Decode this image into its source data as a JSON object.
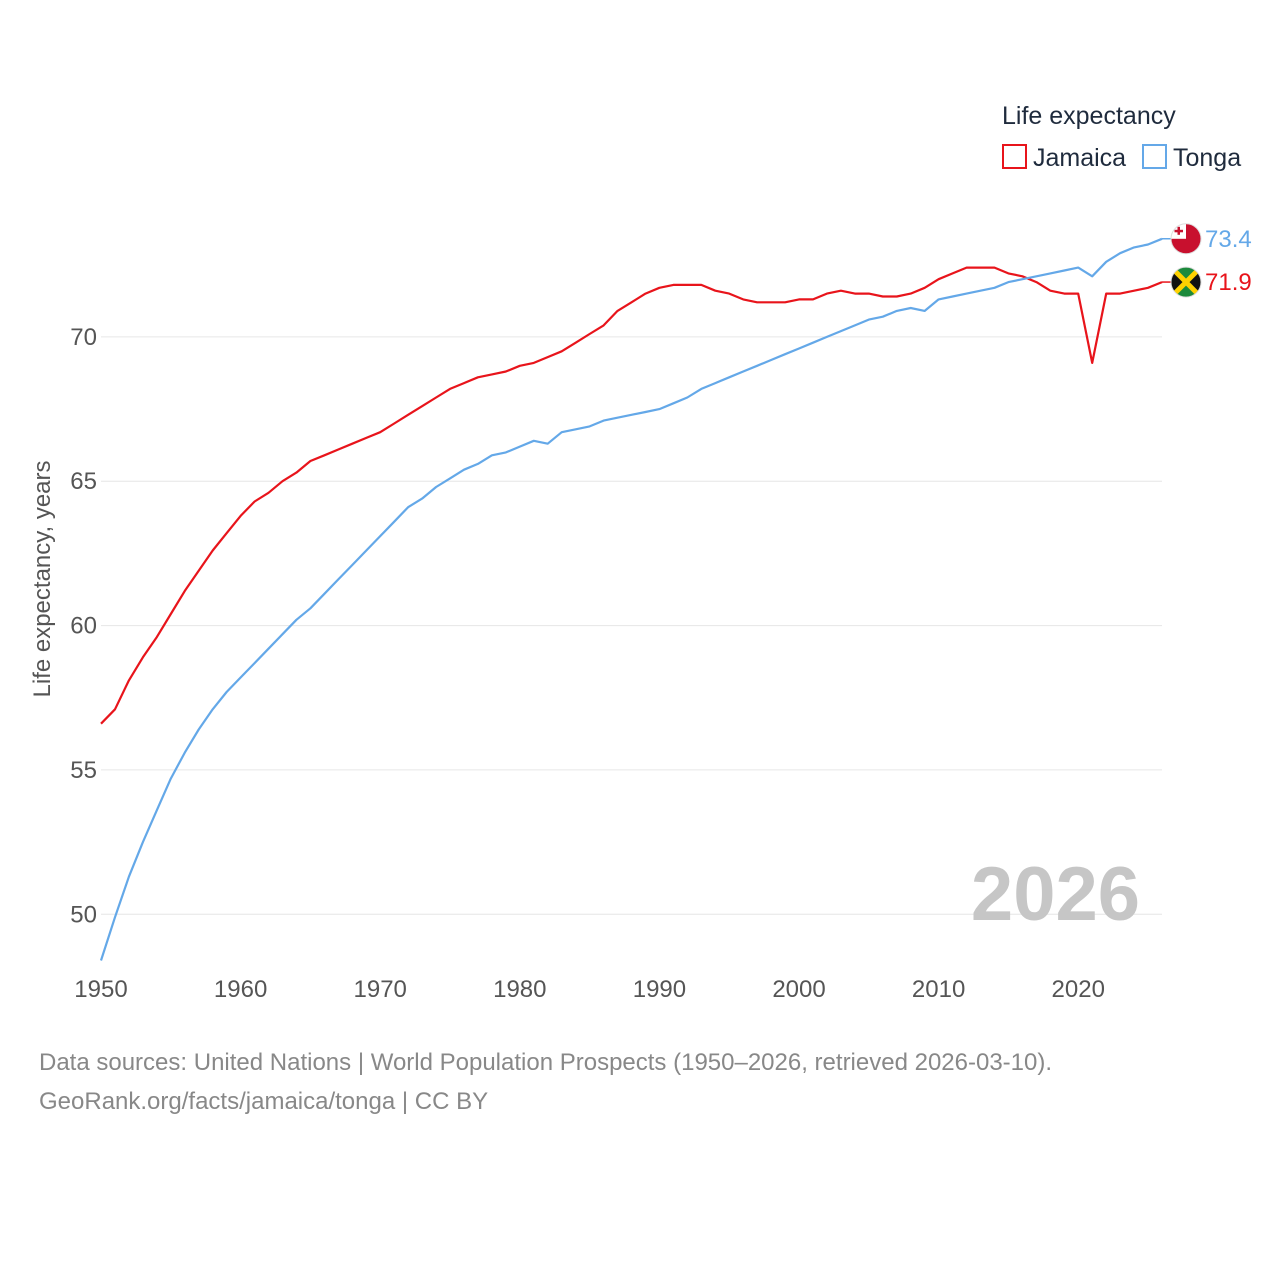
{
  "legend": {
    "title": "Life expectancy"
  },
  "year_label": "2026",
  "source": {
    "line1": "Data sources: United Nations | World Population Prospects (1950–2026, retrieved 2026-03-10).",
    "line2": "GeoRank.org/facts/jamaica/tonga | CC BY"
  },
  "colors": {
    "jamaica": "#e8141b",
    "tonga": "#64a8e8",
    "grid": "#e6e6e6"
  },
  "chart_data": {
    "type": "line",
    "title": "",
    "xlabel": "",
    "ylabel": "Life expectancy, years",
    "xlim": [
      1950,
      2026
    ],
    "ylim": [
      48,
      74.5
    ],
    "xticks": [
      1950,
      1960,
      1970,
      1980,
      1990,
      2000,
      2010,
      2020
    ],
    "yticks": [
      50,
      55,
      60,
      65,
      70
    ],
    "x": [
      1950,
      1951,
      1952,
      1953,
      1954,
      1955,
      1956,
      1957,
      1958,
      1959,
      1960,
      1961,
      1962,
      1963,
      1964,
      1965,
      1966,
      1967,
      1968,
      1969,
      1970,
      1971,
      1972,
      1973,
      1974,
      1975,
      1976,
      1977,
      1978,
      1979,
      1980,
      1981,
      1982,
      1983,
      1984,
      1985,
      1986,
      1987,
      1988,
      1989,
      1990,
      1991,
      1992,
      1993,
      1994,
      1995,
      1996,
      1997,
      1998,
      1999,
      2000,
      2001,
      2002,
      2003,
      2004,
      2005,
      2006,
      2007,
      2008,
      2009,
      2010,
      2011,
      2012,
      2013,
      2014,
      2015,
      2016,
      2017,
      2018,
      2019,
      2020,
      2021,
      2022,
      2023,
      2024,
      2025,
      2026
    ],
    "series": [
      {
        "name": "Jamaica",
        "color": "#e8141b",
        "end_label": "71.9",
        "values": [
          56.6,
          57.1,
          58.1,
          58.9,
          59.6,
          60.4,
          61.2,
          61.9,
          62.6,
          63.2,
          63.8,
          64.3,
          64.6,
          65.0,
          65.3,
          65.7,
          65.9,
          66.1,
          66.3,
          66.5,
          66.7,
          67.0,
          67.3,
          67.6,
          67.9,
          68.2,
          68.4,
          68.6,
          68.7,
          68.8,
          69.0,
          69.1,
          69.3,
          69.5,
          69.8,
          70.1,
          70.4,
          70.9,
          71.2,
          71.5,
          71.7,
          71.8,
          71.8,
          71.8,
          71.6,
          71.5,
          71.3,
          71.2,
          71.2,
          71.2,
          71.3,
          71.3,
          71.5,
          71.6,
          71.5,
          71.5,
          71.4,
          71.4,
          71.5,
          71.7,
          72.0,
          72.2,
          72.4,
          72.4,
          72.4,
          72.2,
          72.1,
          71.9,
          71.6,
          71.5,
          71.5,
          69.1,
          71.5,
          71.5,
          71.6,
          71.7,
          71.9
        ]
      },
      {
        "name": "Tonga",
        "color": "#64a8e8",
        "end_label": "73.4",
        "values": [
          48.4,
          49.9,
          51.3,
          52.5,
          53.6,
          54.7,
          55.6,
          56.4,
          57.1,
          57.7,
          58.2,
          58.7,
          59.2,
          59.7,
          60.2,
          60.6,
          61.1,
          61.6,
          62.1,
          62.6,
          63.1,
          63.6,
          64.1,
          64.4,
          64.8,
          65.1,
          65.4,
          65.6,
          65.9,
          66.0,
          66.2,
          66.4,
          66.3,
          66.7,
          66.8,
          66.9,
          67.1,
          67.2,
          67.3,
          67.4,
          67.5,
          67.7,
          67.9,
          68.2,
          68.4,
          68.6,
          68.8,
          69.0,
          69.2,
          69.4,
          69.6,
          69.8,
          70.0,
          70.2,
          70.4,
          70.6,
          70.7,
          70.9,
          71.0,
          70.9,
          71.3,
          71.4,
          71.5,
          71.6,
          71.7,
          71.9,
          72.0,
          72.1,
          72.2,
          72.3,
          72.4,
          72.1,
          72.6,
          72.9,
          73.1,
          73.2,
          73.4
        ]
      }
    ]
  }
}
